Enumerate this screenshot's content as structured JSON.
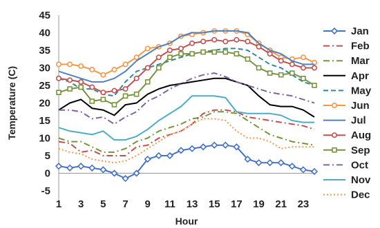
{
  "chart_data": {
    "type": "line",
    "xlabel": "Hour",
    "ylabel": "Temperature (C)",
    "ylim": [
      -5,
      45
    ],
    "yticks": [
      -5,
      0,
      5,
      10,
      15,
      20,
      25,
      30,
      35,
      40,
      45
    ],
    "xlim": [
      1,
      24
    ],
    "xticks": [
      1,
      3,
      5,
      7,
      9,
      11,
      13,
      15,
      17,
      19,
      21,
      23
    ],
    "grid": false,
    "legend_position": "right",
    "x": [
      1,
      2,
      3,
      4,
      5,
      6,
      7,
      8,
      9,
      10,
      11,
      12,
      13,
      14,
      15,
      16,
      17,
      18,
      19,
      20,
      21,
      22,
      23,
      24
    ],
    "series": [
      {
        "name": "Jan",
        "color": "#4472c4",
        "dash": "solid",
        "marker": "diamond",
        "values": [
          2,
          1.5,
          2,
          1.5,
          1,
          0,
          -1.5,
          0,
          4,
          5,
          5,
          6.5,
          7,
          7.5,
          8,
          8,
          7.5,
          4,
          3,
          3,
          3,
          2,
          1,
          0.5
        ]
      },
      {
        "name": "Feb",
        "color": "#c0504d",
        "dash": "dashdot",
        "marker": "none",
        "values": [
          9,
          8.5,
          6,
          6.5,
          5,
          5,
          5,
          7.5,
          8,
          10,
          11,
          12,
          14,
          17,
          18,
          18,
          17.5,
          16,
          15.5,
          15,
          14.5,
          14,
          13.5,
          12.5
        ]
      },
      {
        "name": "Mar",
        "color": "#77933c",
        "dash": "dashdot",
        "marker": "none",
        "values": [
          10,
          9,
          9,
          7.5,
          6,
          6,
          7,
          9,
          10,
          12,
          13,
          14,
          15.5,
          16,
          17.5,
          17.5,
          17,
          15,
          13,
          11,
          10,
          9,
          8.5,
          8
        ]
      },
      {
        "name": "Apr",
        "color": "#000000",
        "dash": "solid",
        "marker": "none",
        "values": [
          18,
          20,
          21,
          18.5,
          18,
          16.5,
          19.5,
          20,
          22.5,
          24,
          25,
          25.5,
          26,
          26.5,
          27,
          27,
          26,
          25,
          22,
          19.5,
          19,
          19,
          18,
          16
        ]
      },
      {
        "name": "May",
        "color": "#31859c",
        "dash": "dashed",
        "marker": "none",
        "values": [
          27,
          26,
          24,
          24,
          22.5,
          22,
          26,
          29,
          30,
          31,
          32,
          33,
          34,
          34.5,
          35,
          35.5,
          35.5,
          35,
          33,
          31,
          30,
          28,
          26,
          25
        ]
      },
      {
        "name": "Jun",
        "color": "#f79646",
        "dash": "solid",
        "marker": "circle",
        "values": [
          31,
          31,
          30.5,
          29.5,
          28,
          29.5,
          31,
          33,
          35.5,
          36,
          37,
          39,
          39.5,
          40,
          40.5,
          40.5,
          40.5,
          39.5,
          37,
          35,
          33,
          32.5,
          33,
          31.5
        ]
      },
      {
        "name": "Jul",
        "color": "#4f81bd",
        "dash": "solid",
        "marker": "none",
        "values": [
          29,
          28,
          27,
          26,
          26,
          27,
          29,
          32,
          34,
          36,
          37,
          39,
          40,
          40,
          40.5,
          40.5,
          40.5,
          40,
          37,
          35,
          34,
          32,
          31,
          31
        ]
      },
      {
        "name": "Aug",
        "color": "#c0504d",
        "dash": "solid",
        "marker": "circle",
        "values": [
          27,
          26.5,
          26,
          24.5,
          23,
          23.5,
          24,
          27,
          30,
          33,
          35,
          35.5,
          37,
          37.5,
          38,
          37.5,
          38,
          37.5,
          36,
          34,
          32,
          31,
          30,
          30
        ]
      },
      {
        "name": "Sep",
        "color": "#77933c",
        "dash": "solid",
        "marker": "square",
        "values": [
          23,
          24,
          24.5,
          20.5,
          21,
          19.5,
          22,
          22.5,
          26,
          30,
          33,
          34,
          34,
          34.5,
          34.5,
          34.5,
          34,
          32.5,
          30,
          28.5,
          28,
          28.5,
          27,
          25
        ]
      },
      {
        "name": "Oct",
        "color": "#8064a2",
        "dash": "dashdot",
        "marker": "none",
        "values": [
          18,
          18,
          17.5,
          15.5,
          16,
          14,
          16,
          17.5,
          20.5,
          22,
          24,
          25.5,
          27,
          28,
          28.5,
          27.5,
          26,
          25,
          24,
          23,
          22.5,
          22,
          21,
          20
        ]
      },
      {
        "name": "Nov",
        "color": "#4bacc6",
        "dash": "solid",
        "marker": "none",
        "values": [
          13,
          12,
          11.5,
          11,
          12,
          9.5,
          9.5,
          10.5,
          12.5,
          15,
          17,
          19,
          22,
          22,
          22,
          21.5,
          17.5,
          17,
          17,
          17,
          16.5,
          15,
          14.5,
          14.5
        ]
      },
      {
        "name": "Dec",
        "color": "#f79646",
        "dash": "dotted",
        "marker": "none",
        "values": [
          7,
          6,
          5.5,
          4,
          3.5,
          3,
          3.5,
          5,
          7,
          9,
          11,
          12,
          14,
          15.5,
          15.5,
          15,
          12,
          10,
          10,
          9,
          7,
          7.5,
          7.5,
          7.5
        ]
      }
    ]
  }
}
